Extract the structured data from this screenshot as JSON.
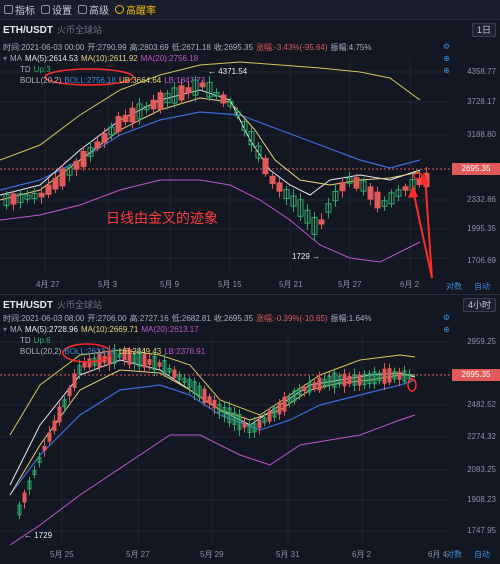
{
  "toolbar": {
    "items": [
      {
        "label": "指标",
        "icon": "chart-icon"
      },
      {
        "label": "设置",
        "icon": "gear-icon"
      },
      {
        "label": "高级",
        "icon": "chart-advanced-icon"
      },
      {
        "label": "高醒率",
        "icon": "sun-icon"
      }
    ]
  },
  "top": {
    "symbol": "ETH/USDT",
    "source": "火币全球站",
    "timeframe": "1日",
    "ohlc": {
      "time": "时间:2021-06-03 00:00",
      "open": "开:2790.99",
      "high": "高:2803.69",
      "low": "低:2671.18",
      "close": "收:2695.35",
      "chg": "涨幅:-3.43%(-95.64)",
      "amp": "振幅:4.75%"
    },
    "ma": {
      "label": "MA",
      "ma5": "MA(5):2614.53",
      "ma10": "MA(10):2611.92",
      "ma20": "MA(20):2756.18"
    },
    "td": {
      "label": "TD",
      "val": "Up:3"
    },
    "boll": {
      "label": "BOLL(20,2)",
      "boll": "BOLL:2756.18",
      "ub": "UB:3664.64",
      "lb": "LB:1847.73"
    },
    "y_ticks": [
      "4358.77",
      "3728.17",
      "3188.80",
      "2695.35",
      "2332.86",
      "1995.35",
      "1706.69"
    ],
    "x_ticks": [
      "4月 27",
      "5月 3",
      "5月 9",
      "5月 15",
      "5月 21",
      "5月 27",
      "6月 2"
    ],
    "high_mark": "← 4371.54",
    "low_mark": "1729 →",
    "annotation": "日线由金叉的迹象",
    "last_price": "2695.35"
  },
  "bottom": {
    "symbol": "ETH/USDT",
    "source": "火币全球站",
    "timeframe": "4小时",
    "ohlc": {
      "time": "时间:2021-06-03 08:00",
      "open": "开:2706.00",
      "high": "高:2727.16",
      "low": "低:2682.81",
      "close": "收:2695.35",
      "chg": "涨幅:-0.39%(-10.65)",
      "amp": "振幅:1.64%"
    },
    "ma": {
      "label": "MA",
      "ma5": "MA(5):2728.96",
      "ma10": "MA(10):2669.71",
      "ma20": "MA(20):2613.17"
    },
    "td": {
      "label": "TD",
      "val": "Up:6"
    },
    "boll": {
      "label": "BOLL(20,2)",
      "boll": "BOLL:2613.17",
      "ub": "UB:2849.43",
      "lb": "LB:2376.91"
    },
    "y_ticks": [
      "2959.25",
      "2695.35",
      "2482.52",
      "2274.32",
      "2083.25",
      "1908.23",
      "1747.95"
    ],
    "x_ticks": [
      "5月 25",
      "5月 27",
      "5月 29",
      "5月 31",
      "6月 2",
      "6月 4"
    ],
    "low_mark": "← 1729",
    "last_price": "2695.35",
    "buttons": {
      "log": "对数",
      "auto": "自动"
    }
  }
}
